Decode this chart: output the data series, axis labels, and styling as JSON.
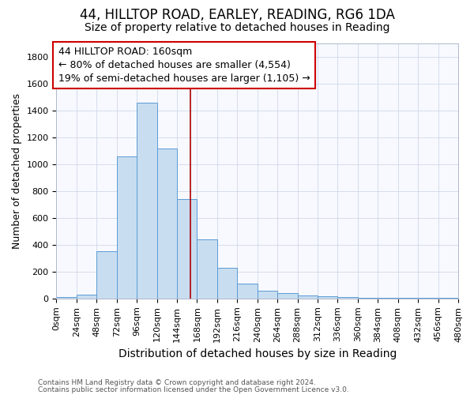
{
  "title": "44, HILLTOP ROAD, EARLEY, READING, RG6 1DA",
  "subtitle": "Size of property relative to detached houses in Reading",
  "xlabel": "Distribution of detached houses by size in Reading",
  "ylabel": "Number of detached properties",
  "footnote1": "Contains HM Land Registry data © Crown copyright and database right 2024.",
  "footnote2": "Contains public sector information licensed under the Open Government Licence v3.0.",
  "bar_edges": [
    0,
    24,
    48,
    72,
    96,
    120,
    144,
    168,
    192,
    216,
    240,
    264,
    288,
    312,
    336,
    360,
    384,
    408,
    432,
    456,
    480
  ],
  "bar_heights": [
    8,
    30,
    355,
    1060,
    1460,
    1120,
    740,
    440,
    230,
    110,
    55,
    40,
    20,
    15,
    10,
    5,
    5,
    3,
    2,
    2
  ],
  "bar_color": "#c8ddf0",
  "bar_edge_color": "#5b9bd5",
  "bar_edge_width": 0.7,
  "red_line_x": 160,
  "red_line_color": "#aa0000",
  "annotation_line1": "44 HILLTOP ROAD: 160sqm",
  "annotation_line2": "← 80% of detached houses are smaller (4,554)",
  "annotation_line3": "19% of semi-detached houses are larger (1,105) →",
  "annotation_box_facecolor": "#ffffff",
  "annotation_box_edgecolor": "#cc0000",
  "ylim": [
    0,
    1900
  ],
  "xlim": [
    0,
    480
  ],
  "bg_color": "#f7f9ff",
  "grid_color": "#d0d8e8",
  "title_fontsize": 12,
  "subtitle_fontsize": 10,
  "ylabel_fontsize": 9,
  "xlabel_fontsize": 10,
  "tick_fontsize": 8,
  "footnote_fontsize": 6.5,
  "annotation_fontsize": 9
}
